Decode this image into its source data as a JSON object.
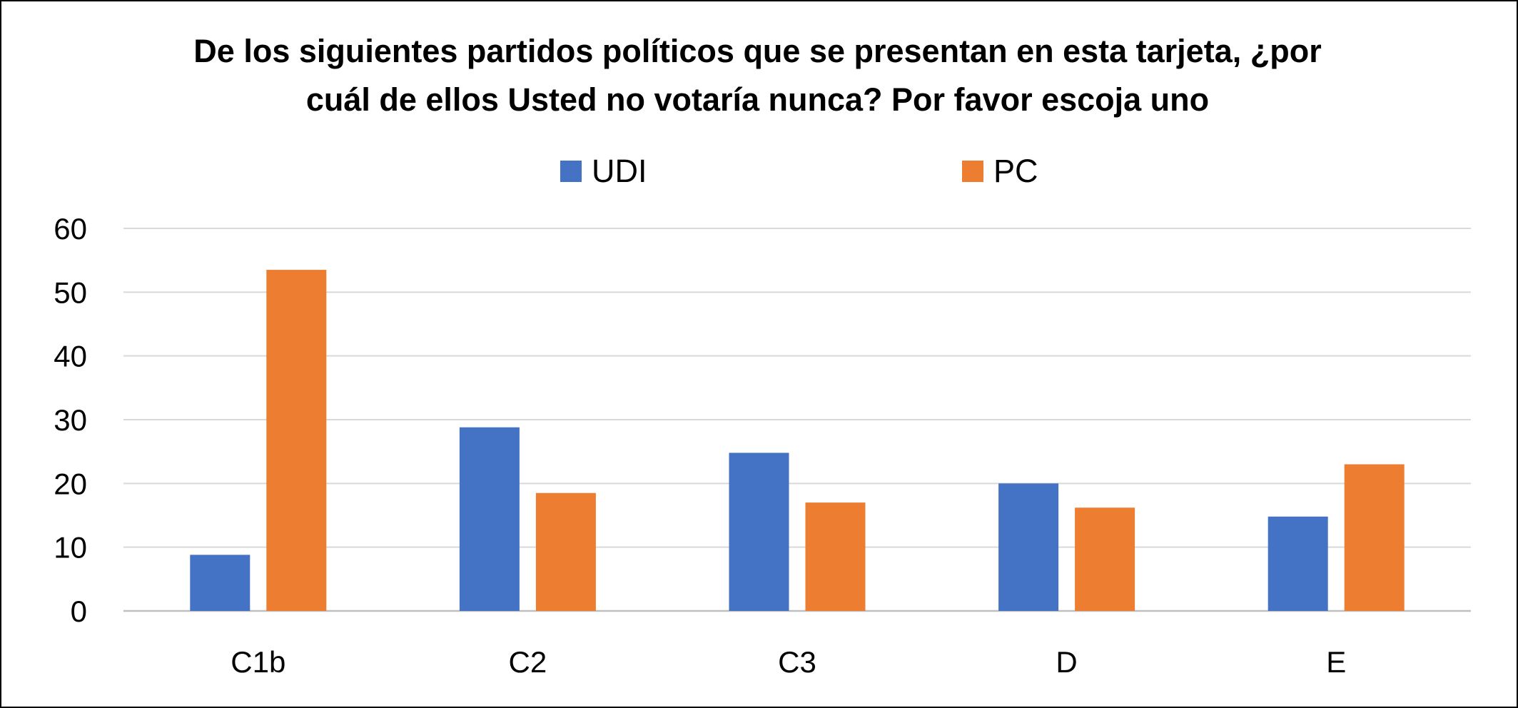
{
  "chart_data": {
    "type": "bar",
    "title_lines": [
      "De los siguientes partidos políticos que se presentan en esta tarjeta, ¿por",
      "cuál de ellos Usted no votaría nunca? Por favor escoja uno"
    ],
    "categories": [
      "C1b",
      "C2",
      "C3",
      "D",
      "E"
    ],
    "series": [
      {
        "name": "UDI",
        "color": "#4472C4",
        "values": [
          8.8,
          28.8,
          24.8,
          20.0,
          14.8
        ]
      },
      {
        "name": "PC",
        "color": "#ED7D31",
        "values": [
          53.5,
          18.5,
          17.0,
          16.2,
          23.0
        ]
      }
    ],
    "ylim": [
      0,
      60
    ],
    "yticks": [
      "0",
      "10",
      "20",
      "30",
      "40",
      "50",
      "60"
    ],
    "grid": true,
    "legend_position": "top",
    "xlabel": "",
    "ylabel": ""
  }
}
